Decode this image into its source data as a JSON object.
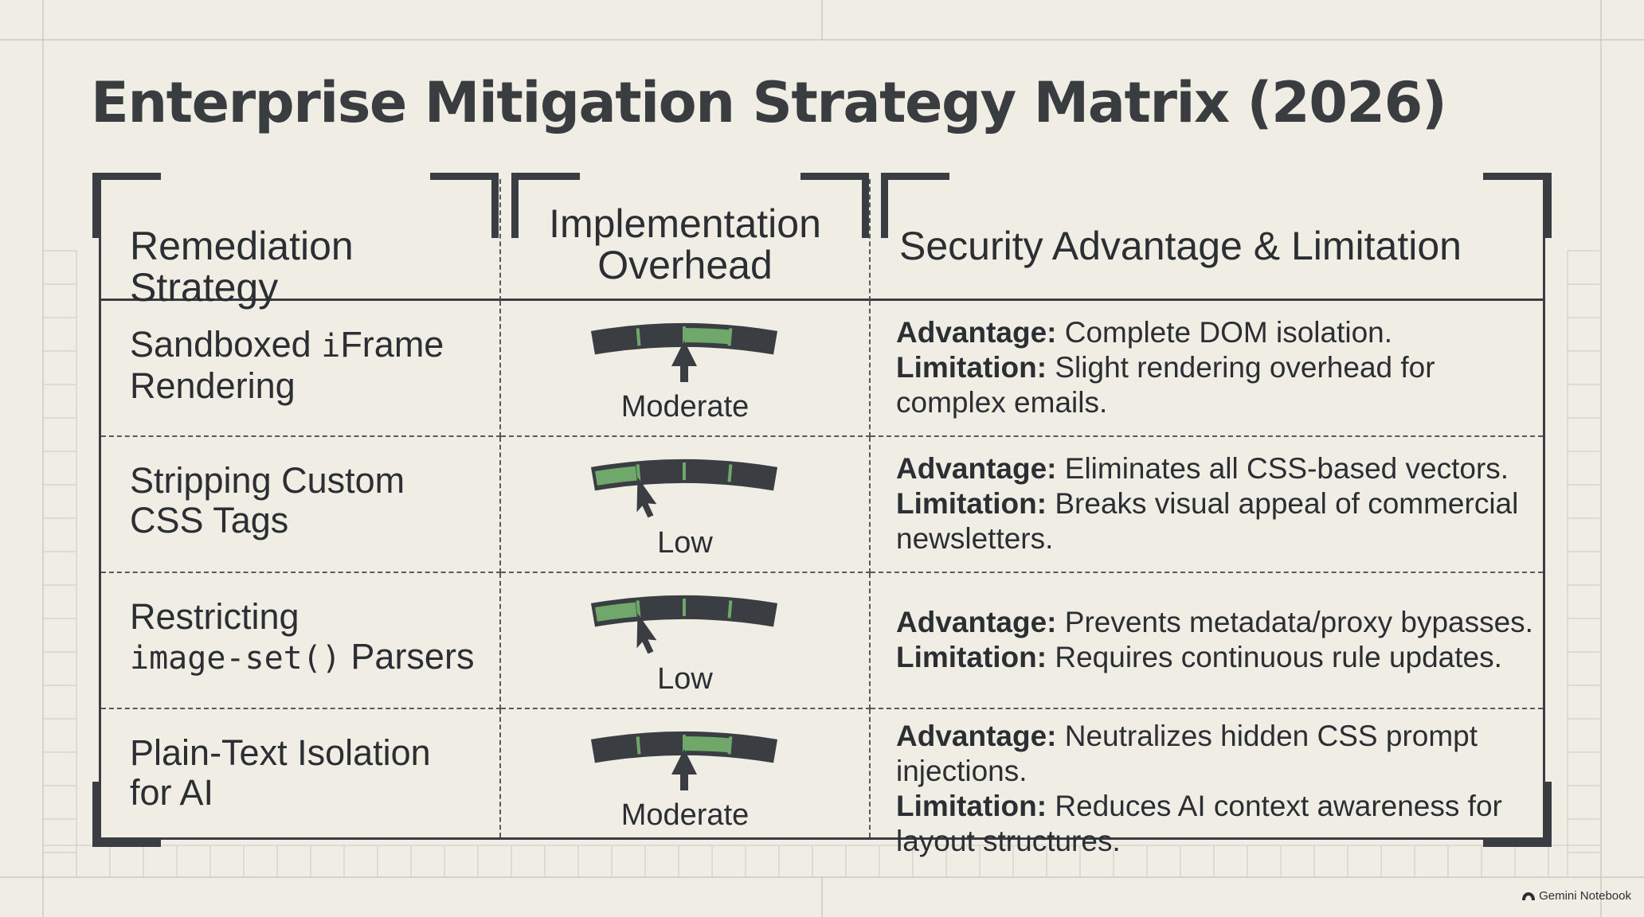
{
  "title": "Enterprise Mitigation Strategy Matrix (2026)",
  "headers": {
    "strategy": "Remediation Strategy",
    "overhead_line1": "Implementation",
    "overhead_line2": "Overhead",
    "security": "Security Advantage & Limitation"
  },
  "rows": [
    {
      "strategy_line1": "Sandboxed iFrame",
      "strategy_line2": "Rendering",
      "overhead": "Moderate",
      "overhead_level": "moderate",
      "advantage_label": "Advantage:",
      "advantage": " Complete DOM isolation.",
      "limitation_label": "Limitation:",
      "limitation": " Slight rendering overhead for complex emails."
    },
    {
      "strategy_line1": "Stripping Custom",
      "strategy_line2": "CSS Tags",
      "overhead": "Low",
      "overhead_level": "low",
      "advantage_label": "Advantage:",
      "advantage": " Eliminates all CSS-based vectors.",
      "limitation_label": "Limitation:",
      "limitation": " Breaks visual appeal of commercial newsletters."
    },
    {
      "strategy_line1": "Restricting",
      "strategy_line2_code": "image-set()",
      "strategy_line2": " Parsers",
      "overhead": "Low",
      "overhead_level": "low",
      "advantage_label": "Advantage:",
      "advantage": " Prevents metadata/proxy bypasses.",
      "limitation_label": "Limitation:",
      "limitation": " Requires continuous rule updates."
    },
    {
      "strategy_line1": "Plain-Text Isolation",
      "strategy_line2": "for AI",
      "overhead": "Moderate",
      "overhead_level": "moderate",
      "advantage_label": "Advantage:",
      "advantage": " Neutralizes hidden CSS prompt injections.",
      "limitation_label": "Limitation:",
      "limitation": " Reduces AI context awareness for layout structures."
    }
  ],
  "footer": "Gemini Notebook",
  "colors": {
    "background": "#f0eee4",
    "ink": "#3a3e42",
    "gauge_fill": "#6fa86a"
  }
}
